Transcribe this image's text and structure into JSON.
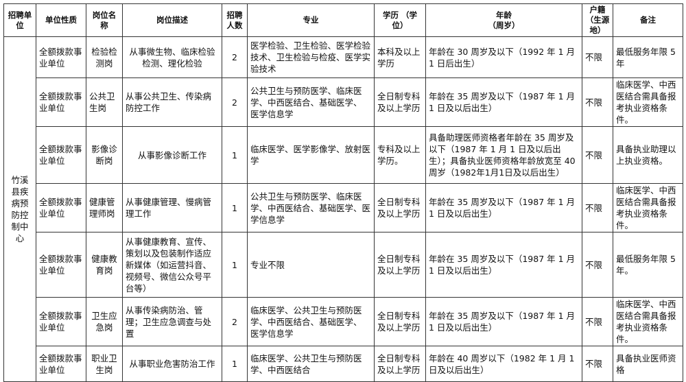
{
  "headers": [
    "招聘单位",
    "单位性质",
    "岗位名称",
    "岗位描述",
    "招聘人数",
    "专业",
    "学历 （学位）",
    "年龄\n（周岁）",
    "户籍（生源地）",
    "备注"
  ],
  "unit": "竹溪县疾病预防控制中心",
  "rows": [
    {
      "nature": "全额拨款事业单位",
      "post": "检验检测岗",
      "desc": "从事微生物、临床检验检测、理化检验",
      "count": "2",
      "major": "医学检验、卫生检验、医学检验技术、卫生检验与检疫、医学实验技术",
      "edu": "本科及以上学历",
      "age": "年龄在 30 周岁及以下（1992 年 1 月 1 日后出生）",
      "hukou": "不限",
      "note": "最低服务年限 5 年"
    },
    {
      "nature": "全额拨款事业单位",
      "post": "公共卫生岗",
      "desc": "从事公共卫生、传染病防控工作",
      "count": "2",
      "major": "公共卫生与预防医学、临床医学、中西医结合、基础医学、 医学信息学",
      "edu": "全日制专科及以上学历",
      "age": "年龄在 35 周岁及以下（1987 年 1 月 1 日及以后出生）",
      "hukou": "不限",
      "note": "临床医学、中西医结合需具备报考执业资格条件。"
    },
    {
      "nature": "全额拨款事业单位",
      "post": "影像诊断岗",
      "desc": "从事影像诊断工作",
      "count": "1",
      "major": "临床医学、医学影像学、放射医学",
      "edu": "专科及以上学历。",
      "age": "具备助理医师资格者年龄在 35 周岁及以下（1987 年 1 月 1 日及以后出生）；具备执业医师资格年龄放宽至 40 周岁（1982年1月1日及以后出生）",
      "hukou": "不限",
      "note": "具备执业助理以上执业资格。"
    },
    {
      "nature": "全额拨款事业单位",
      "post": "健康管理师岗",
      "desc": "从事健康管理、慢病管理工作",
      "count": "1",
      "major": "公共卫生与预防医学、临床医学、中西医结合、基础医学、医学信息学",
      "edu": "全日制专科及以上学历",
      "age": "年龄在 35 周岁及以下（1987 年 1 月 1 日及以后出生）",
      "hukou": "不限",
      "note": "临床医学、中西医结合需具备报考执业资格条件。"
    },
    {
      "nature": "全额拨款事业单位",
      "post": "健康教育岗",
      "desc": "从事健康教育、宣传、策划以及包装制作适应新媒体（如运营抖音、视频号、微信公众号平台等）",
      "count": "1",
      "major": "专业不限",
      "edu": "全日制专科及以上学历",
      "age": "年龄在 35 周岁及以下（1987 年 1 月 1 日及以后出生）",
      "hukou": "不限",
      "note": "最低服务年限 5 年。"
    },
    {
      "nature": "全额拨款事业单位",
      "post": "卫生应急岗",
      "desc": "从事传染病防治、管理；卫生应急调查与处置",
      "count": "2",
      "major": "临床医学、公共卫生与预防医学、中西医结合、基础医学、 医学信息学",
      "edu": "全日制专科及以上学历",
      "age": "年龄在 35 周岁及以下（1987 年 1 月 1 日及以后出生）",
      "hukou": "不限",
      "note": "临床医学、中西医结合需具备报考执业资格条件。"
    },
    {
      "nature": "全额拨款事业单位",
      "post": "职业卫生岗",
      "desc": "从事职业危害防治工作",
      "count": "1",
      "major": "临床医学、公共卫生与预防医学、中西医结合",
      "edu": "全日制专科及以上学历",
      "age": "年龄在 40 周岁以下（1982 年 1 月 1 日及以后出生）",
      "hukou": "不限",
      "note": "具备执业医师资格"
    }
  ]
}
